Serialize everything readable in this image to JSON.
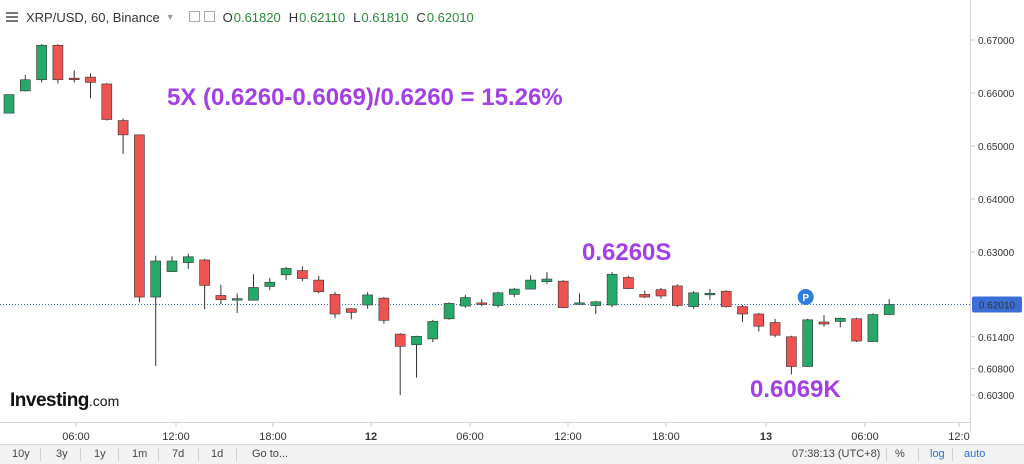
{
  "header": {
    "title": "XRP/USD, 60, Binance",
    "ohlc": [
      {
        "key": "O",
        "value": "0.61820"
      },
      {
        "key": "H",
        "value": "0.62110"
      },
      {
        "key": "L",
        "value": "0.61810"
      },
      {
        "key": "C",
        "value": "0.62010"
      }
    ]
  },
  "annotations": {
    "formula": "5X (0.6260-0.6069)/0.6260 = 15.26%",
    "short_label": "0.6260S",
    "target_label": "0.6069K",
    "marker": "P"
  },
  "brand": {
    "name": "Investing",
    "suffix": ".com"
  },
  "footer": {
    "ranges": [
      "10y",
      "3y",
      "1y",
      "1m",
      "7d",
      "1d"
    ],
    "goto": "Go to...",
    "time": "07:38:13 (UTC+8)",
    "percent": "%",
    "log": "log",
    "auto": "auto"
  },
  "colors": {
    "up": "#26a869",
    "down": "#ef5350",
    "annotation": "#a33fe6",
    "price_line": "#3b6fd8"
  },
  "chart_data": {
    "type": "candlestick",
    "title": "XRP/USD, 60, Binance",
    "ylim": [
      0.6005,
      0.674
    ],
    "y_ticks": [
      "0.67000",
      "0.66000",
      "0.65000",
      "0.64000",
      "0.63000",
      "0.61400",
      "0.60800",
      "0.60300"
    ],
    "x_tick_labels": [
      "06:00",
      "12:00",
      "18:00",
      "12",
      "06:00",
      "12:00",
      "18:00",
      "13",
      "06:00",
      "12:0"
    ],
    "current_price": "0.62010",
    "grid": false,
    "candles": [
      [
        0.6562,
        0.6597,
        0.6597,
        0.6562
      ],
      [
        0.6604,
        0.6625,
        0.6634,
        0.6603
      ],
      [
        0.6625,
        0.669,
        0.6692,
        0.662
      ],
      [
        0.669,
        0.6625,
        0.6692,
        0.6618
      ],
      [
        0.6628,
        0.6627,
        0.6643,
        0.662
      ],
      [
        0.663,
        0.662,
        0.6637,
        0.659
      ],
      [
        0.6617,
        0.655,
        0.6619,
        0.6548
      ],
      [
        0.6548,
        0.6521,
        0.6552,
        0.6485
      ],
      [
        0.6521,
        0.6215,
        0.6521,
        0.6205
      ],
      [
        0.6215,
        0.6283,
        0.6293,
        0.6085
      ],
      [
        0.6263,
        0.6283,
        0.6292,
        0.6262
      ],
      [
        0.628,
        0.6291,
        0.6297,
        0.6268
      ],
      [
        0.6285,
        0.6237,
        0.6287,
        0.6192
      ],
      [
        0.6218,
        0.621,
        0.6238,
        0.6202
      ],
      [
        0.6212,
        0.6212,
        0.6222,
        0.6185
      ],
      [
        0.6209,
        0.6233,
        0.6258,
        0.6209
      ],
      [
        0.6235,
        0.6243,
        0.6251,
        0.6228
      ],
      [
        0.6257,
        0.6269,
        0.6272,
        0.6247
      ],
      [
        0.6265,
        0.625,
        0.6273,
        0.6245
      ],
      [
        0.6247,
        0.6225,
        0.6255,
        0.6222
      ],
      [
        0.622,
        0.6183,
        0.6225,
        0.6175
      ],
      [
        0.6193,
        0.6186,
        0.6194,
        0.6173
      ],
      [
        0.62,
        0.6219,
        0.6224,
        0.6193
      ],
      [
        0.6213,
        0.6171,
        0.6215,
        0.6165
      ],
      [
        0.6145,
        0.6122,
        0.6147,
        0.603
      ],
      [
        0.6125,
        0.6141,
        0.6142,
        0.6063
      ],
      [
        0.6136,
        0.6169,
        0.6172,
        0.613
      ],
      [
        0.6174,
        0.6203,
        0.6205,
        0.6172
      ],
      [
        0.6198,
        0.6214,
        0.6219,
        0.6195
      ],
      [
        0.6204,
        0.6201,
        0.6211,
        0.6198
      ],
      [
        0.6199,
        0.6223,
        0.6225,
        0.6195
      ],
      [
        0.622,
        0.623,
        0.6232,
        0.6215
      ],
      [
        0.623,
        0.6247,
        0.6256,
        0.623
      ],
      [
        0.6244,
        0.6249,
        0.6262,
        0.624
      ],
      [
        0.6245,
        0.6195,
        0.6247,
        0.6194
      ],
      [
        0.6202,
        0.6204,
        0.6222,
        0.62
      ],
      [
        0.6199,
        0.6206,
        0.6208,
        0.6183
      ],
      [
        0.62,
        0.6258,
        0.6262,
        0.6196
      ],
      [
        0.6252,
        0.6231,
        0.6255,
        0.623
      ],
      [
        0.622,
        0.6215,
        0.6227,
        0.6213
      ],
      [
        0.6229,
        0.6217,
        0.6232,
        0.6212
      ],
      [
        0.6236,
        0.6199,
        0.6239,
        0.6196
      ],
      [
        0.6197,
        0.6223,
        0.6226,
        0.6193
      ],
      [
        0.6221,
        0.6222,
        0.623,
        0.621
      ],
      [
        0.6226,
        0.6197,
        0.6228,
        0.6195
      ],
      [
        0.6197,
        0.6183,
        0.62,
        0.6168
      ],
      [
        0.6183,
        0.616,
        0.6185,
        0.615
      ],
      [
        0.6167,
        0.6143,
        0.6174,
        0.6139
      ],
      [
        0.614,
        0.6084,
        0.6142,
        0.6069
      ],
      [
        0.6084,
        0.6172,
        0.6174,
        0.6083
      ],
      [
        0.6168,
        0.6164,
        0.6181,
        0.6159
      ],
      [
        0.6169,
        0.6175,
        0.6176,
        0.6158
      ],
      [
        0.6174,
        0.6132,
        0.6176,
        0.613
      ],
      [
        0.6131,
        0.6182,
        0.6184,
        0.6131
      ],
      [
        0.6182,
        0.6201,
        0.6211,
        0.6181
      ]
    ]
  }
}
